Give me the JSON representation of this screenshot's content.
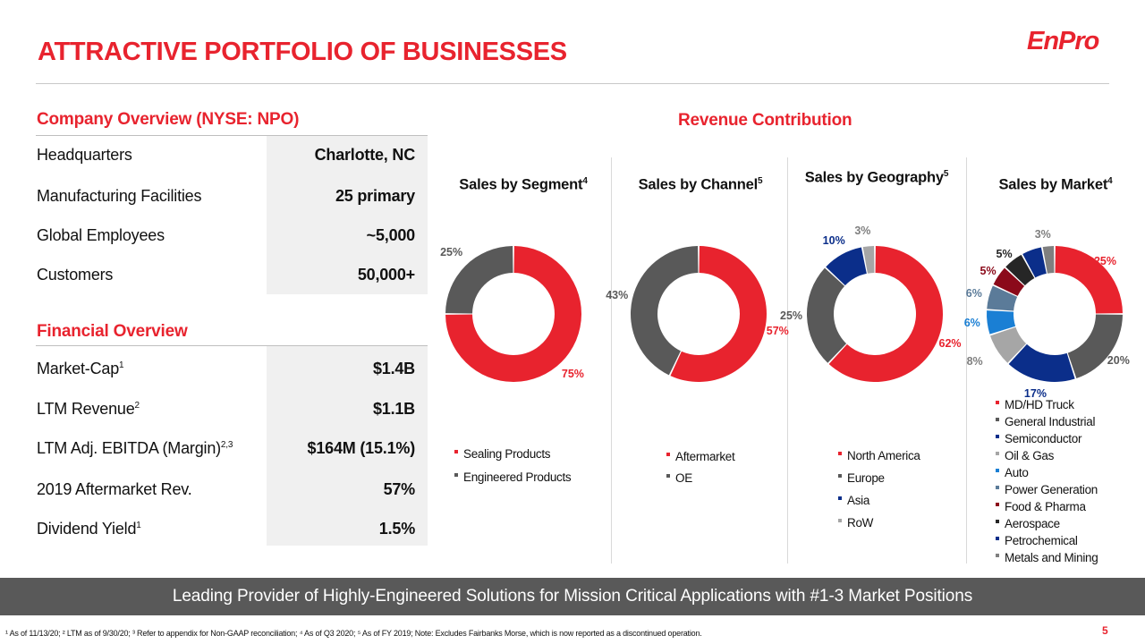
{
  "title": "ATTRACTIVE PORTFOLIO OF BUSINESSES",
  "logo_text": "EnPro",
  "company_overview": {
    "heading": "Company Overview (NYSE: NPO)",
    "rows": [
      {
        "label": "Headquarters",
        "value": "Charlotte, NC"
      },
      {
        "label": "Manufacturing Facilities",
        "value": "25 primary"
      },
      {
        "label": "Global Employees",
        "value": "~5,000"
      },
      {
        "label": "Customers",
        "value": "50,000+"
      }
    ]
  },
  "financial_overview": {
    "heading": "Financial Overview",
    "rows": [
      {
        "label": "Market-Cap",
        "sup": "1",
        "value": "$1.4B"
      },
      {
        "label": "LTM Revenue",
        "sup": "2",
        "value": "$1.1B"
      },
      {
        "label": "LTM Adj. EBITDA (Margin)",
        "sup": "2,3",
        "value": "$164M (15.1%)"
      },
      {
        "label": "2019 Aftermarket Rev.",
        "sup": "",
        "value": "57%"
      },
      {
        "label": "Dividend Yield",
        "sup": "1",
        "value": "1.5%"
      }
    ]
  },
  "revenue_heading": "Revenue Contribution",
  "colors": {
    "red": "#e8232e",
    "gray": "#595959",
    "navy": "#0b2e8a",
    "light_gray": "#a6a6a6",
    "blue": "#1a7fd4",
    "mid_gray": "#8c8c8c",
    "dark_red": "#8b0a1a",
    "dark": "#262626",
    "slate": "#5b7b99",
    "silver": "#7f7f7f"
  },
  "chart_data": [
    {
      "type": "pie",
      "title": "Sales by Segment",
      "title_sup": "4",
      "categories": [
        "Sealing Products",
        "Engineered Products"
      ],
      "values": [
        75,
        25
      ],
      "labels": [
        "75%",
        "25%"
      ],
      "colors": [
        "#e8232e",
        "#595959"
      ]
    },
    {
      "type": "pie",
      "title": "Sales by Channel",
      "title_sup": "5",
      "categories": [
        "Aftermarket",
        "OE"
      ],
      "values": [
        57,
        43
      ],
      "labels": [
        "57%",
        "43%"
      ],
      "colors": [
        "#e8232e",
        "#595959"
      ]
    },
    {
      "type": "pie",
      "title": "Sales by Geography",
      "title_sup": "5",
      "categories": [
        "North America",
        "Europe",
        "Asia",
        "RoW"
      ],
      "values": [
        62,
        25,
        10,
        3
      ],
      "labels": [
        "62%",
        "25%",
        "10%",
        "3%"
      ],
      "colors": [
        "#e8232e",
        "#595959",
        "#0b2e8a",
        "#a6a6a6"
      ]
    },
    {
      "type": "pie",
      "title": "Sales by Market",
      "title_sup": "4",
      "categories": [
        "MD/HD Truck",
        "General Industrial",
        "Semiconductor",
        "Oil & Gas",
        "Auto",
        "Power Generation",
        "Food & Pharma",
        "Aerospace",
        "Petrochemical",
        "Metals and Mining"
      ],
      "values": [
        25,
        20,
        17,
        8,
        6,
        6,
        5,
        5,
        5,
        3
      ],
      "labels": [
        "25%",
        "20%",
        "17%",
        "8%",
        "6%",
        "6%",
        "5%",
        "5%",
        "5%",
        "3%"
      ],
      "colors": [
        "#e8232e",
        "#595959",
        "#0b2e8a",
        "#a6a6a6",
        "#1a7fd4",
        "#5b7b99",
        "#8b0a1a",
        "#262626",
        "#0b2e8a",
        "#7f7f7f"
      ]
    }
  ],
  "banner_text": "Leading Provider of Highly-Engineered Solutions for Mission Critical Applications with #1-3 Market Positions",
  "footnote": "¹ As of 11/13/20; ² LTM as of 9/30/20; ³ Refer to appendix for Non-GAAP reconciliation; ⁴ As of Q3 2020; ⁵ As of FY 2019; Note: Excludes Fairbanks Morse, which is now reported as a discontinued operation.",
  "page_number": "5"
}
